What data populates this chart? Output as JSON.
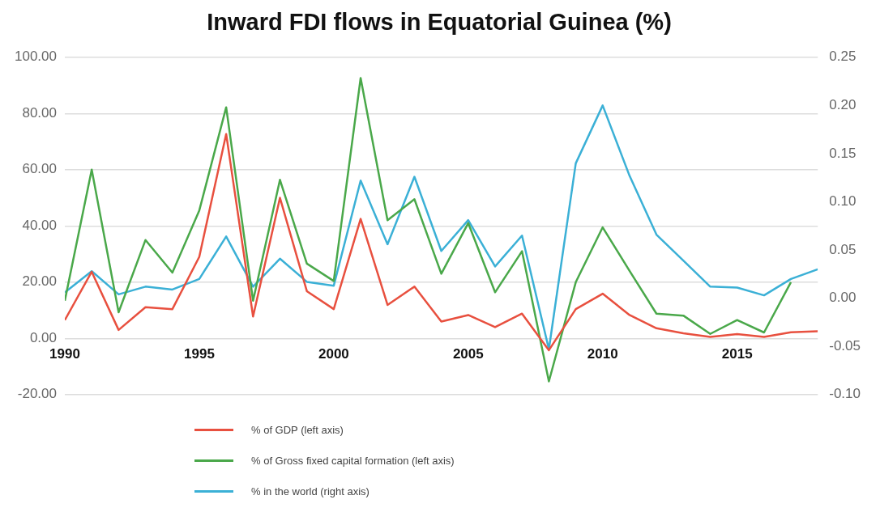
{
  "chart_data": {
    "type": "line",
    "title": "Inward FDI flows in Equatorial Guinea (%)",
    "x": [
      1990,
      1991,
      1992,
      1993,
      1994,
      1995,
      1996,
      1997,
      1998,
      1999,
      2000,
      2001,
      2002,
      2003,
      2004,
      2005,
      2006,
      2007,
      2008,
      2009,
      2010,
      2011,
      2012,
      2013,
      2014,
      2015,
      2016,
      2017,
      2018
    ],
    "series": [
      {
        "name": "% of GDP (left axis)",
        "color": "#e8503f",
        "values": [
          6.5,
          23.7,
          3.0,
          11.1,
          10.4,
          29,
          72.7,
          7.8,
          50,
          16.8,
          10.4,
          42.5,
          11.9,
          18.4,
          6,
          8.3,
          4.0,
          8.8,
          -4.2,
          10.4,
          15.9,
          8.3,
          3.6,
          1.8,
          0.5,
          1.5,
          0.5,
          2.2,
          2.5
        ]
      },
      {
        "name": "% of Gross fixed capital formation (left axis)",
        "color": "#4aa84a",
        "values": [
          13.4,
          60,
          9.3,
          35,
          23.4,
          45.5,
          82.2,
          13.4,
          56.4,
          26.6,
          20.4,
          92.6,
          42,
          49.5,
          23,
          41,
          16.4,
          31,
          -15.3,
          20,
          39.5,
          24,
          8.8,
          8.1,
          1.6,
          6.5,
          2.1,
          20,
          null
        ]
      },
      {
        "name": "% in the world (right axis)",
        "color": "#3bb0d6",
        "axis": "y2",
        "values": [
          0.006,
          0.028,
          0.004,
          0.012,
          0.009,
          0.02,
          0.064,
          0.012,
          0.041,
          0.017,
          0.013,
          0.122,
          0.056,
          0.126,
          0.049,
          0.081,
          0.033,
          0.065,
          -0.053,
          0.14,
          0.2,
          0.127,
          0.066,
          0.039,
          0.012,
          0.011,
          0.003,
          0.02,
          0.03
        ]
      }
    ],
    "xlim": [
      1990,
      2018
    ],
    "xticks": [
      1990,
      1995,
      2000,
      2005,
      2010,
      2015
    ],
    "ylim": [
      -20,
      100
    ],
    "yticks": [
      {
        "value": -20,
        "label": "-20.00"
      },
      {
        "value": 0,
        "label": "0.00"
      },
      {
        "value": 20,
        "label": "20.00"
      },
      {
        "value": 40,
        "label": "40.00"
      },
      {
        "value": 60,
        "label": "60.00"
      },
      {
        "value": 80,
        "label": "80.00"
      },
      {
        "value": 100,
        "label": "100.00"
      }
    ],
    "y2lim": [
      -0.1,
      0.25
    ],
    "y2ticks": [
      {
        "value": -0.1,
        "label": "-0.10"
      },
      {
        "value": -0.05,
        "label": "-0.05"
      },
      {
        "value": 0,
        "label": "0.00"
      },
      {
        "value": 0.05,
        "label": "0.05"
      },
      {
        "value": 0.1,
        "label": "0.10"
      },
      {
        "value": 0.15,
        "label": "0.15"
      },
      {
        "value": 0.2,
        "label": "0.20"
      },
      {
        "value": 0.25,
        "label": "0.25"
      }
    ],
    "grid": "y",
    "legend": "bottom",
    "marker": "none",
    "line_style": "solid"
  }
}
